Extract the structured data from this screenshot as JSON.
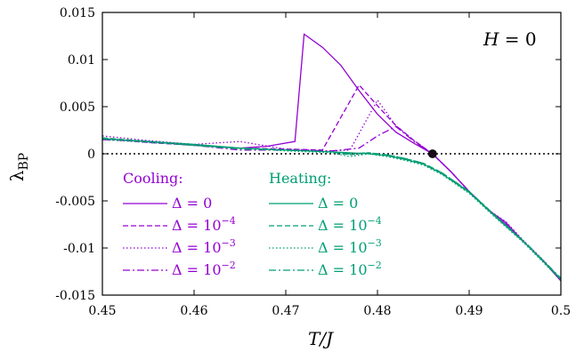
{
  "colors": {
    "cooling": "#9400d3",
    "heating": "#009e73",
    "zero_line": "#000000",
    "marker": "#1a0a1a"
  },
  "chart_data": {
    "type": "line",
    "xlabel": "T/J",
    "ylabel": "λBP",
    "annotation": "H = 0",
    "xlim": [
      0.45,
      0.5
    ],
    "ylim": [
      -0.015,
      0.015
    ],
    "xticks": [
      0.45,
      0.46,
      0.47,
      0.48,
      0.49,
      0.5
    ],
    "xtick_labels": [
      "0.45",
      "0.46",
      "0.47",
      "0.48",
      "0.49",
      "0.5"
    ],
    "yticks": [
      0.015,
      0.01,
      0.005,
      0,
      -0.005,
      -0.01,
      -0.015
    ],
    "ytick_labels": [
      "0.015",
      "0.01",
      "0.005",
      "0",
      "-0.005",
      "-0.01",
      "-0.015"
    ],
    "grid": false,
    "legend": {
      "position": "bottom-left",
      "cooling_title": "Cooling:",
      "heating_title": "Heating:",
      "cooling_labels": [
        "Δ = 0",
        "Δ = 10−4",
        "Δ = 10−3",
        "Δ = 10−2"
      ],
      "heating_labels": [
        "Δ = 0",
        "Δ = 10−4",
        "Δ = 10−3",
        "Δ = 10−2"
      ]
    },
    "marker_point": {
      "x": 0.486,
      "y": 0.0
    },
    "series": [
      {
        "group": "cooling",
        "dash": "solid",
        "name": "Δ = 0",
        "x": [
          0.45,
          0.455,
          0.46,
          0.465,
          0.468,
          0.471,
          0.472,
          0.474,
          0.476,
          0.478,
          0.48,
          0.482,
          0.484,
          0.486,
          0.488,
          0.49,
          0.492,
          0.494,
          0.496,
          0.498,
          0.5
        ],
        "y": [
          0.0016,
          0.0013,
          0.0009,
          0.0006,
          0.0008,
          0.0013,
          0.0127,
          0.0113,
          0.0094,
          0.0067,
          0.0042,
          0.0023,
          0.0011,
          0.0,
          -0.0019,
          -0.004,
          -0.0059,
          -0.0073,
          -0.0094,
          -0.0113,
          -0.0135
        ]
      },
      {
        "group": "cooling",
        "dash": "dashed",
        "name": "Δ = 10−4",
        "x": [
          0.45,
          0.455,
          0.46,
          0.465,
          0.47,
          0.474,
          0.478,
          0.48,
          0.482,
          0.484,
          0.486,
          0.488,
          0.49,
          0.492,
          0.494,
          0.496,
          0.498,
          0.5
        ],
        "y": [
          0.0016,
          0.0012,
          0.0009,
          0.0006,
          0.0005,
          0.0004,
          0.0073,
          0.0051,
          0.003,
          0.0014,
          0.0,
          -0.0019,
          -0.004,
          -0.0059,
          -0.0075,
          -0.0094,
          -0.0113,
          -0.0134
        ]
      },
      {
        "group": "cooling",
        "dash": "dotted",
        "name": "Δ = 10−3",
        "x": [
          0.45,
          0.455,
          0.46,
          0.465,
          0.47,
          0.475,
          0.477,
          0.48,
          0.482,
          0.484,
          0.486,
          0.488,
          0.49,
          0.492,
          0.494,
          0.496,
          0.498,
          0.5
        ],
        "y": [
          0.0019,
          0.0014,
          0.001,
          0.0013,
          0.0005,
          0.0003,
          0.0004,
          0.0057,
          0.003,
          0.0014,
          0.0,
          -0.0019,
          -0.004,
          -0.0059,
          -0.0072,
          -0.0093,
          -0.0112,
          -0.0133
        ]
      },
      {
        "group": "cooling",
        "dash": "dashdot",
        "name": "Δ = 10−2",
        "x": [
          0.45,
          0.455,
          0.46,
          0.465,
          0.47,
          0.475,
          0.478,
          0.48,
          0.482,
          0.484,
          0.486,
          0.488,
          0.49,
          0.492,
          0.494,
          0.496,
          0.498,
          0.5
        ],
        "y": [
          0.0015,
          0.0013,
          0.0009,
          0.0004,
          0.0004,
          0.0003,
          0.0006,
          0.0019,
          0.0029,
          0.0013,
          0.0,
          -0.0019,
          -0.004,
          -0.0059,
          -0.0075,
          -0.0094,
          -0.0113,
          -0.0133
        ]
      },
      {
        "group": "heating",
        "dash": "solid",
        "name": "Δ = 0",
        "x": [
          0.45,
          0.455,
          0.46,
          0.465,
          0.47,
          0.475,
          0.477,
          0.479,
          0.481,
          0.483,
          0.485,
          0.487,
          0.49,
          0.493,
          0.496,
          0.5
        ],
        "y": [
          0.0016,
          0.0013,
          0.001,
          0.0006,
          0.0004,
          0.0002,
          0.0001,
          0.0,
          -0.0002,
          -0.0006,
          -0.0011,
          -0.0021,
          -0.0041,
          -0.0068,
          -0.0094,
          -0.0133
        ]
      },
      {
        "group": "heating",
        "dash": "dashed",
        "name": "Δ = 10−4",
        "x": [
          0.45,
          0.455,
          0.46,
          0.465,
          0.47,
          0.475,
          0.477,
          0.479,
          0.481,
          0.483,
          0.485,
          0.487,
          0.49,
          0.493,
          0.496,
          0.5
        ],
        "y": [
          0.0017,
          0.0013,
          0.0009,
          0.0006,
          0.0004,
          0.0002,
          -0.0001,
          0.0001,
          -0.0001,
          -0.0005,
          -0.001,
          -0.002,
          -0.004,
          -0.0067,
          -0.0094,
          -0.0133
        ]
      },
      {
        "group": "heating",
        "dash": "dotted",
        "name": "Δ = 10−3",
        "x": [
          0.45,
          0.455,
          0.46,
          0.465,
          0.47,
          0.475,
          0.477,
          0.479,
          0.481,
          0.483,
          0.485,
          0.487,
          0.49,
          0.493,
          0.496,
          0.5
        ],
        "y": [
          0.0015,
          0.0012,
          0.0009,
          0.0006,
          0.0003,
          0.0001,
          -0.0003,
          0.0,
          -0.0003,
          -0.0007,
          -0.0012,
          -0.0022,
          -0.0042,
          -0.0069,
          -0.0095,
          -0.0134
        ]
      },
      {
        "group": "heating",
        "dash": "dashdot",
        "name": "Δ = 10−2",
        "x": [
          0.45,
          0.455,
          0.46,
          0.465,
          0.47,
          0.475,
          0.477,
          0.479,
          0.481,
          0.483,
          0.485,
          0.487,
          0.49,
          0.493,
          0.496,
          0.5
        ],
        "y": [
          0.0016,
          0.0013,
          0.0009,
          0.0005,
          0.0004,
          0.0002,
          0.0,
          0.0001,
          -0.0001,
          -0.0005,
          -0.001,
          -0.002,
          -0.004,
          -0.0067,
          -0.0093,
          -0.0132
        ]
      }
    ]
  }
}
